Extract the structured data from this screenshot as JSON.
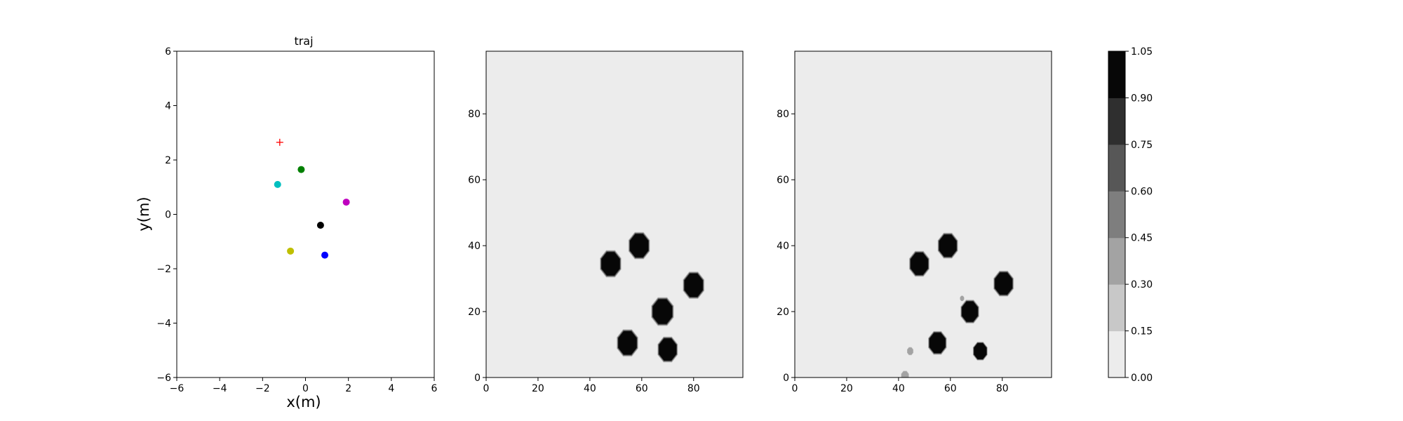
{
  "chart_data": [
    {
      "type": "scatter",
      "title": "traj",
      "xlabel": "x(m)",
      "ylabel": "y(m)",
      "xlim": [
        -6,
        6
      ],
      "ylim": [
        -6,
        6
      ],
      "xticks": [
        -6,
        -4,
        -2,
        0,
        2,
        4,
        6
      ],
      "yticks": [
        -6,
        -4,
        -2,
        0,
        2,
        4,
        6
      ],
      "target": {
        "x": -1.2,
        "y": 2.65,
        "marker": "+",
        "color": "#ff0000"
      },
      "points": [
        {
          "x": -0.2,
          "y": 1.65,
          "color": "#008000"
        },
        {
          "x": -1.3,
          "y": 1.1,
          "color": "#00bfbf"
        },
        {
          "x": 1.9,
          "y": 0.45,
          "color": "#bf00bf"
        },
        {
          "x": 0.7,
          "y": -0.4,
          "color": "#000000"
        },
        {
          "x": -0.7,
          "y": -1.35,
          "color": "#bfbf00"
        },
        {
          "x": 0.9,
          "y": -1.5,
          "color": "#0000ff"
        }
      ],
      "grid": false
    },
    {
      "type": "heatmap",
      "title": "",
      "xlim": [
        0,
        99
      ],
      "ylim": [
        0,
        99
      ],
      "xticks": [
        0,
        20,
        40,
        60,
        80
      ],
      "yticks": [
        0,
        20,
        40,
        60,
        80
      ],
      "background_level": 0.0,
      "blobs": [
        {
          "x": 59,
          "y": 40,
          "radius": 3.8,
          "peak": 1.0
        },
        {
          "x": 48,
          "y": 34.5,
          "radius": 3.8,
          "peak": 1.0
        },
        {
          "x": 80,
          "y": 28,
          "radius": 3.8,
          "peak": 1.0
        },
        {
          "x": 68,
          "y": 20,
          "radius": 4.0,
          "peak": 1.0
        },
        {
          "x": 54.5,
          "y": 10.5,
          "radius": 3.8,
          "peak": 1.0
        },
        {
          "x": 70,
          "y": 8.5,
          "radius": 3.6,
          "peak": 1.0
        }
      ]
    },
    {
      "type": "heatmap",
      "title": "",
      "xlim": [
        0,
        99
      ],
      "ylim": [
        0,
        99
      ],
      "xticks": [
        0,
        20,
        40,
        60,
        80
      ],
      "yticks": [
        0,
        20,
        40,
        60,
        80
      ],
      "background_level": 0.0,
      "blobs": [
        {
          "x": 59,
          "y": 40,
          "radius": 3.6,
          "peak": 1.0
        },
        {
          "x": 48,
          "y": 34.5,
          "radius": 3.6,
          "peak": 1.0
        },
        {
          "x": 80.5,
          "y": 28.5,
          "radius": 3.6,
          "peak": 1.0
        },
        {
          "x": 67.5,
          "y": 20,
          "radius": 3.3,
          "peak": 1.0
        },
        {
          "x": 55,
          "y": 10.5,
          "radius": 3.3,
          "peak": 1.0
        },
        {
          "x": 71.5,
          "y": 8,
          "radius": 2.6,
          "peak": 0.95
        },
        {
          "x": 44.5,
          "y": 8,
          "radius": 1.2,
          "peak": 0.35
        },
        {
          "x": 64.5,
          "y": 24,
          "radius": 0.8,
          "peak": 0.3
        },
        {
          "x": 42.5,
          "y": 0.5,
          "radius": 1.5,
          "peak": 0.3
        }
      ]
    }
  ],
  "colorbar": {
    "levels": [
      0.0,
      0.15,
      0.3,
      0.45,
      0.6,
      0.75,
      0.9,
      1.05
    ],
    "labels": [
      "0.00",
      "0.15",
      "0.30",
      "0.45",
      "0.60",
      "0.75",
      "0.90",
      "1.05"
    ],
    "colors": [
      "#ececec",
      "#c8c8c8",
      "#a3a3a3",
      "#7e7e7e",
      "#575757",
      "#2f2f2f",
      "#070707"
    ]
  }
}
